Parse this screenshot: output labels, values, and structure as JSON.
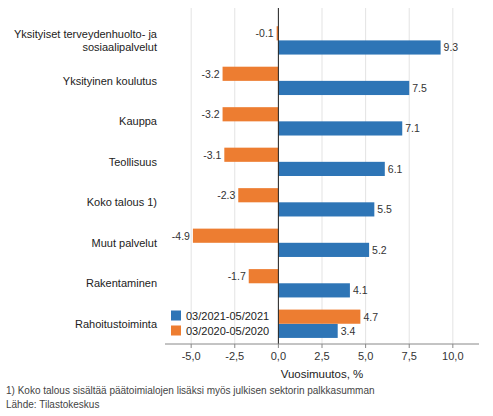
{
  "chart_data": {
    "type": "bar",
    "orientation": "horizontal",
    "xlabel": "Vuosimuutos, %",
    "annotations": [
      "1) Koko talous sisältää päätoimialojen lisäksi myös julkisen sektorin palkkasumman",
      "Lähde: Tilastokeskus"
    ],
    "categories": [
      "Yksityiset terveydenhuolto- ja\nsosiaalipalvelut",
      "Yksityinen koulutus",
      "Kauppa",
      "Teollisuus",
      "Koko talous 1)",
      "Muut palvelut",
      "Rakentaminen",
      "Rahoitustoiminta"
    ],
    "series": [
      {
        "name": "03/2021-05/2021",
        "color": "#2E75B6",
        "values": [
          9.3,
          7.5,
          7.1,
          6.1,
          5.5,
          5.2,
          4.1,
          3.4
        ]
      },
      {
        "name": "03/2020-05/2020",
        "color": "#ED7D31",
        "values": [
          -0.1,
          -3.2,
          -3.2,
          -3.1,
          -2.3,
          -4.9,
          -1.7,
          4.7
        ]
      }
    ],
    "xlim": [
      -6.5,
      11.5
    ],
    "xticks": [
      {
        "value": -5.0,
        "label": "-5,0"
      },
      {
        "value": -2.5,
        "label": "-2,5"
      },
      {
        "value": 0.0,
        "label": "0,0"
      },
      {
        "value": 2.5,
        "label": "2,5"
      },
      {
        "value": 5.0,
        "label": "5,0"
      },
      {
        "value": 7.5,
        "label": "7,5"
      },
      {
        "value": 10.0,
        "label": "10,0"
      }
    ],
    "grid": true,
    "legend": "lower left",
    "data_labels": true
  }
}
